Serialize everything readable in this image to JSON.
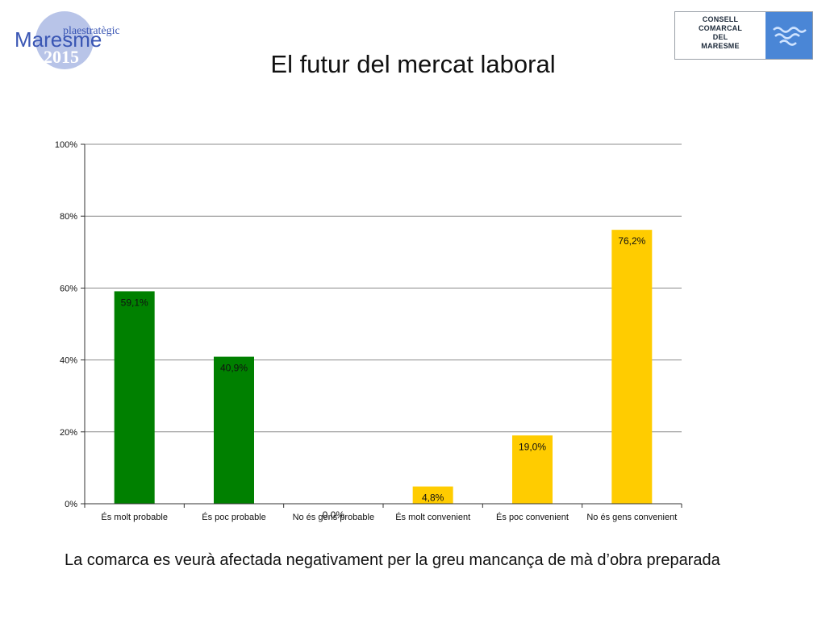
{
  "header": {
    "title": "El futur del mercat laboral",
    "logo_left": {
      "line1": "plaestratègic",
      "line2": "Maresme",
      "line3": "2015"
    },
    "logo_right": {
      "lines": [
        "CONSELL",
        "COMARCAL",
        "DEL",
        "MARESME"
      ]
    }
  },
  "caption": "La comarca es veurà afectada negativament per la greu mancança de mà d’obra preparada",
  "colors": {
    "green": "#008000",
    "yellow": "#ffcc00",
    "grid": "#8c8c8c",
    "logo_blue": "#4a86d6"
  },
  "chart_data": {
    "type": "bar",
    "title": "",
    "xlabel": "",
    "ylabel": "",
    "ylim": [
      0,
      100
    ],
    "yticks": [
      "0%",
      "20%",
      "40%",
      "60%",
      "80%",
      "100%"
    ],
    "grid": true,
    "categories": [
      "És molt probable",
      "És poc probable",
      "No és gens probable",
      "És molt convenient",
      "És poc convenient",
      "No és gens convenient"
    ],
    "values": [
      59.1,
      40.9,
      0.0,
      4.8,
      19.0,
      76.2
    ],
    "labels": [
      "59,1%",
      "40,9%",
      "0,0%",
      "4,8%",
      "19,0%",
      "76,2%"
    ],
    "bar_colors": [
      "#008000",
      "#008000",
      "#008000",
      "#ffcc00",
      "#ffcc00",
      "#ffcc00"
    ]
  }
}
